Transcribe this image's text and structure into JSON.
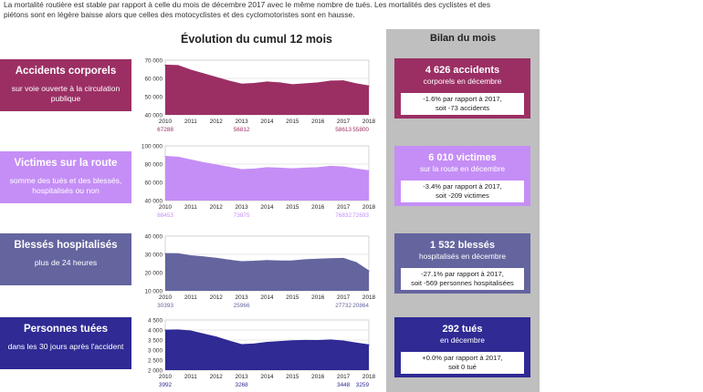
{
  "intro_text": "La mortalité routière est stable par rapport à celle du mois de décembre 2017 avec le même nombre de tués. Les mortalités des cyclistes et des piétons sont en légère baisse alors que celles des motocyclistes et des cyclomotoristes sont en hausse.",
  "center_title": "Évolution du cumul 12 mois",
  "bilan_title": "Bilan du mois",
  "colors": {
    "accidents": "#9b2f64",
    "victimes": "#c58ef6",
    "blesses": "#64649f",
    "tues": "#2f2a94",
    "panel": "#bfbfbf"
  },
  "sections": [
    {
      "left_title": "Accidents corporels",
      "left_subtitle": "sur voie ouverte à la circulation publique",
      "right_title": "4 626 accidents",
      "right_subtitle": "corporels en décembre",
      "right_detail_1": "-1.6% par rapport à 2017,",
      "right_detail_2": "soit -73 accidents"
    },
    {
      "left_title": "Victimes sur la route",
      "left_subtitle": "somme des tués et des blessés, hospitalisés ou non",
      "right_title": "6 010 victimes",
      "right_subtitle": "sur la route en décembre",
      "right_detail_1": "-3.4% par rapport à 2017,",
      "right_detail_2": "soit -209 victimes"
    },
    {
      "left_title": "Blessés hospitalisés",
      "left_subtitle": "plus de 24 heures",
      "right_title": "1 532 blessés",
      "right_subtitle": "hospitalisés en décembre",
      "right_detail_1": "-27.1% par rapport à 2017,",
      "right_detail_2": "soit -569 personnes hospitalisées"
    },
    {
      "left_title": "Personnes tuées",
      "left_subtitle": "dans les 30 jours après l'accident",
      "right_title": "292 tués",
      "right_subtitle": "en décembre",
      "right_detail_1": "+0.0% par rapport à 2017,",
      "right_detail_2": "soit 0 tué"
    }
  ],
  "chart_data": [
    {
      "type": "area",
      "title": "Accidents corporels",
      "x": [
        2010,
        2010.5,
        2011,
        2011.5,
        2012,
        2012.5,
        2013,
        2013.5,
        2014,
        2014.5,
        2015,
        2015.5,
        2016,
        2016.5,
        2017,
        2017.5,
        2018
      ],
      "values": [
        67288,
        67000,
        64500,
        62500,
        60500,
        58500,
        56812,
        57200,
        58000,
        57500,
        56500,
        57000,
        57500,
        58500,
        58613,
        57000,
        55800
      ],
      "xlim": [
        2010,
        2018
      ],
      "ylim": [
        40000,
        70000
      ],
      "yticks": [
        40000,
        50000,
        60000,
        70000
      ],
      "ytick_labels": [
        "40 000",
        "50 000",
        "60 000",
        "70 000"
      ],
      "xticks": [
        2010,
        2011,
        2012,
        2013,
        2014,
        2015,
        2016,
        2017,
        2018
      ],
      "annotations": [
        {
          "x": 2010,
          "label": "67288"
        },
        {
          "x": 2013,
          "label": "56812"
        },
        {
          "x": 2017,
          "label": "58613"
        },
        {
          "x": 2018,
          "label": "55800"
        }
      ]
    },
    {
      "type": "area",
      "title": "Victimes sur la route",
      "x": [
        2010,
        2010.5,
        2011,
        2011.5,
        2012,
        2012.5,
        2013,
        2013.5,
        2014,
        2014.5,
        2015,
        2015.5,
        2016,
        2016.5,
        2017,
        2017.5,
        2018
      ],
      "values": [
        88453,
        87500,
        84500,
        81500,
        79000,
        76500,
        73875,
        74500,
        76000,
        75500,
        74800,
        75500,
        76000,
        77500,
        76832,
        74500,
        72693
      ],
      "xlim": [
        2010,
        2018
      ],
      "ylim": [
        40000,
        100000
      ],
      "yticks": [
        40000,
        60000,
        80000,
        100000
      ],
      "ytick_labels": [
        "40 000",
        "60 000",
        "80 000",
        "100 000"
      ],
      "xticks": [
        2010,
        2011,
        2012,
        2013,
        2014,
        2015,
        2016,
        2017,
        2018
      ],
      "annotations": [
        {
          "x": 2010,
          "label": "88453"
        },
        {
          "x": 2013,
          "label": "73875"
        },
        {
          "x": 2017,
          "label": "76832"
        },
        {
          "x": 2018,
          "label": "72693"
        }
      ]
    },
    {
      "type": "area",
      "title": "Blessés hospitalisés",
      "x": [
        2010,
        2010.5,
        2011,
        2011.5,
        2012,
        2012.5,
        2013,
        2013.5,
        2014,
        2014.5,
        2015,
        2015.5,
        2016,
        2016.5,
        2017,
        2017.5,
        2018
      ],
      "values": [
        30393,
        30300,
        29200,
        28600,
        27800,
        26800,
        25966,
        26200,
        26600,
        26300,
        26400,
        27000,
        27300,
        27600,
        27732,
        25500,
        20864
      ],
      "xlim": [
        2010,
        2018
      ],
      "ylim": [
        10000,
        40000
      ],
      "yticks": [
        10000,
        20000,
        30000,
        40000
      ],
      "ytick_labels": [
        "10 000",
        "20 000",
        "30 000",
        "40 000"
      ],
      "xticks": [
        2010,
        2011,
        2012,
        2013,
        2014,
        2015,
        2016,
        2017,
        2018
      ],
      "annotations": [
        {
          "x": 2010,
          "label": "30393"
        },
        {
          "x": 2013,
          "label": "25966"
        },
        {
          "x": 2017,
          "label": "27732"
        },
        {
          "x": 2018,
          "label": "20864"
        }
      ]
    },
    {
      "type": "area",
      "title": "Personnes tuées",
      "x": [
        2010,
        2010.5,
        2011,
        2011.5,
        2012,
        2012.5,
        2013,
        2013.5,
        2014,
        2014.5,
        2015,
        2015.5,
        2016,
        2016.5,
        2017,
        2017.5,
        2018
      ],
      "values": [
        3992,
        4000,
        3950,
        3800,
        3650,
        3450,
        3268,
        3300,
        3380,
        3420,
        3460,
        3480,
        3470,
        3500,
        3448,
        3350,
        3259
      ],
      "xlim": [
        2010,
        2018
      ],
      "ylim": [
        2000,
        4500
      ],
      "yticks": [
        2000,
        2500,
        3000,
        3500,
        4000,
        4500
      ],
      "ytick_labels": [
        "2 000",
        "2 500",
        "3 000",
        "3 500",
        "4 000",
        "4 500"
      ],
      "xticks": [
        2010,
        2011,
        2012,
        2013,
        2014,
        2015,
        2016,
        2017,
        2018
      ],
      "annotations": [
        {
          "x": 2010,
          "label": "3992"
        },
        {
          "x": 2013,
          "label": "3268"
        },
        {
          "x": 2017,
          "label": "3448"
        },
        {
          "x": 2018,
          "label": "3259"
        }
      ]
    }
  ]
}
